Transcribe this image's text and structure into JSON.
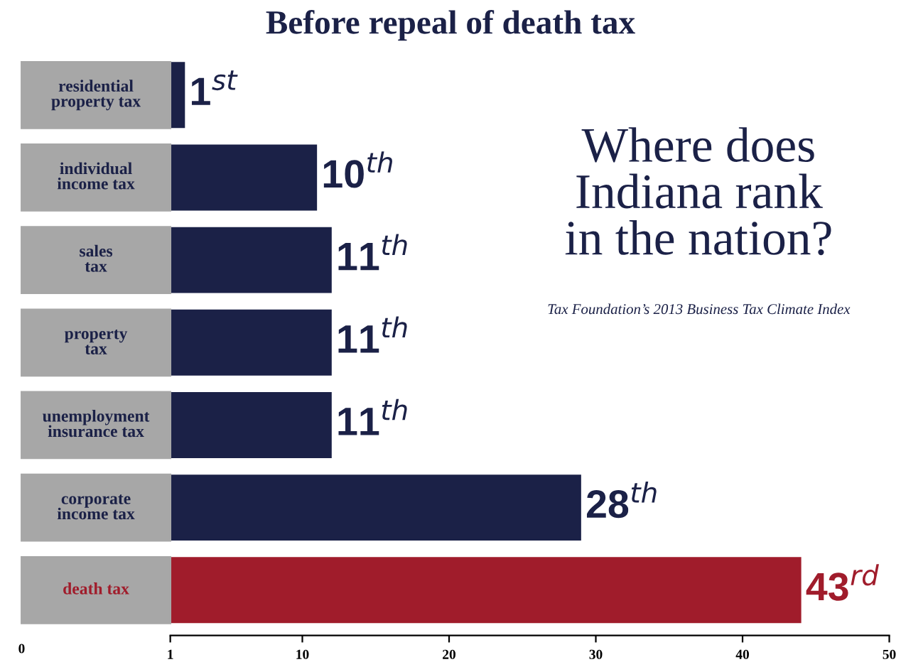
{
  "chart_data": {
    "type": "bar",
    "orientation": "horizontal",
    "title": "Before repeal of death tax",
    "categories": [
      "residential\nproperty tax",
      "individual\nincome tax",
      "sales\ntax",
      "property\ntax",
      "unemployment\ninsurance tax",
      "corporate\nincome tax",
      "death tax"
    ],
    "values": [
      1,
      10,
      11,
      11,
      11,
      28,
      43
    ],
    "base": [
      1,
      1,
      1,
      1,
      1,
      1,
      1
    ],
    "colors": [
      "#1b2147",
      "#1b2147",
      "#1b2147",
      "#1b2147",
      "#1b2147",
      "#1b2147",
      "#a01c2b"
    ],
    "value_labels": [
      "1$^{st}$",
      "10$^{th}$",
      "11$^{th}$",
      "11$^{th}$",
      "11$^{th}$",
      "28$^{th}$",
      "43$^{rd}$"
    ],
    "xlim": [
      1,
      50
    ],
    "xticks": [
      1,
      10,
      20,
      30,
      40,
      50
    ],
    "annotations": [
      "Where does\nIndiana rank\nin the nation?",
      "Tax Foundation’s 2013 Business Tax Climate Index",
      "0"
    ],
    "grid": false
  }
}
